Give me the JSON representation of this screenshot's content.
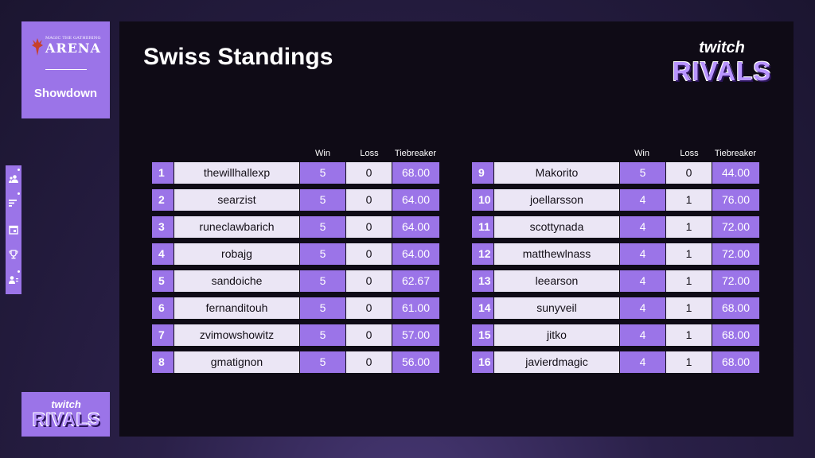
{
  "brand": {
    "game_small": "MAGIC THE GATHERING",
    "game_name": "ARENA",
    "event": "Showdown"
  },
  "sponsor": {
    "top": "twitch",
    "bottom": "RIVALS"
  },
  "page": {
    "title": "Swiss Standings"
  },
  "headers": {
    "win": "Win",
    "loss": "Loss",
    "tiebreaker": "Tiebreaker"
  },
  "nav_icons": [
    "users-icon",
    "list-icon",
    "calendar-icon",
    "trophy-icon",
    "user-list-icon"
  ],
  "colors": {
    "accent": "#9b74e8",
    "light": "#ebe6f5",
    "panel": "#0f0b16"
  },
  "standings_left": [
    {
      "rank": "1",
      "name": "thewillhallexp",
      "win": "5",
      "loss": "0",
      "tb": "68.00"
    },
    {
      "rank": "2",
      "name": "searzist",
      "win": "5",
      "loss": "0",
      "tb": "64.00"
    },
    {
      "rank": "3",
      "name": "runeclawbarich",
      "win": "5",
      "loss": "0",
      "tb": "64.00"
    },
    {
      "rank": "4",
      "name": "robajg",
      "win": "5",
      "loss": "0",
      "tb": "64.00"
    },
    {
      "rank": "5",
      "name": "sandoiche",
      "win": "5",
      "loss": "0",
      "tb": "62.67"
    },
    {
      "rank": "6",
      "name": "fernanditouh",
      "win": "5",
      "loss": "0",
      "tb": "61.00"
    },
    {
      "rank": "7",
      "name": "zvimowshowitz",
      "win": "5",
      "loss": "0",
      "tb": "57.00"
    },
    {
      "rank": "8",
      "name": "gmatignon",
      "win": "5",
      "loss": "0",
      "tb": "56.00"
    }
  ],
  "standings_right": [
    {
      "rank": "9",
      "name": "Makorito",
      "win": "5",
      "loss": "0",
      "tb": "44.00"
    },
    {
      "rank": "10",
      "name": "joellarsson",
      "win": "4",
      "loss": "1",
      "tb": "76.00"
    },
    {
      "rank": "11",
      "name": "scottynada",
      "win": "4",
      "loss": "1",
      "tb": "72.00"
    },
    {
      "rank": "12",
      "name": "matthewlnass",
      "win": "4",
      "loss": "1",
      "tb": "72.00"
    },
    {
      "rank": "13",
      "name": "leearson",
      "win": "4",
      "loss": "1",
      "tb": "72.00"
    },
    {
      "rank": "14",
      "name": "sunyveil",
      "win": "4",
      "loss": "1",
      "tb": "68.00"
    },
    {
      "rank": "15",
      "name": "jitko",
      "win": "4",
      "loss": "1",
      "tb": "68.00"
    },
    {
      "rank": "16",
      "name": "javierdmagic",
      "win": "4",
      "loss": "1",
      "tb": "68.00"
    }
  ]
}
